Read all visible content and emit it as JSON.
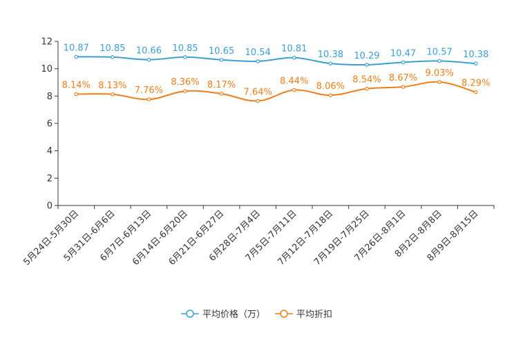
{
  "chart_data": {
    "type": "line",
    "title": "",
    "xlabel": "",
    "ylabel": "",
    "ylim": [
      0,
      12
    ],
    "yticks": [
      0,
      2,
      4,
      6,
      8,
      10,
      12
    ],
    "grid": false,
    "legend_position": "bottom",
    "categories": [
      "5月24日-5月30日",
      "5月31日-6月6日",
      "6月7日-6月13日",
      "6月14日-6月20日",
      "6月21日-6月27日",
      "6月28日-7月4日",
      "7月5日-7月11日",
      "7月12日-7月18日",
      "7月19日-7月25日",
      "7月26日-8月1日",
      "8月2日-8月8日",
      "8月9日-8月15日"
    ],
    "series": [
      {
        "name": "平均价格（万）",
        "color": "#3b9ed4",
        "values": [
          10.87,
          10.85,
          10.66,
          10.85,
          10.65,
          10.54,
          10.81,
          10.38,
          10.29,
          10.47,
          10.57,
          10.38
        ],
        "labels": [
          "10.87",
          "10.85",
          "10.66",
          "10.85",
          "10.65",
          "10.54",
          "10.81",
          "10.38",
          "10.29",
          "10.47",
          "10.57",
          "10.38"
        ]
      },
      {
        "name": "平均折扣",
        "color": "#f07d1a",
        "values": [
          8.14,
          8.13,
          7.76,
          8.36,
          8.17,
          7.64,
          8.44,
          8.06,
          8.54,
          8.67,
          9.03,
          8.29
        ],
        "labels": [
          "8.14%",
          "8.13%",
          "7.76%",
          "8.36%",
          "8.17%",
          "7.64%",
          "8.44%",
          "8.06%",
          "8.54%",
          "8.67%",
          "9.03%",
          "8.29%"
        ]
      }
    ]
  }
}
